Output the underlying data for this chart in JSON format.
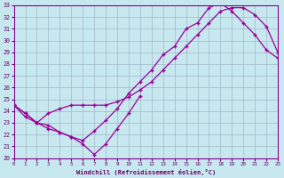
{
  "xlabel": "Windchill (Refroidissement éolien,°C)",
  "xlim": [
    0,
    23
  ],
  "ylim": [
    20,
    33
  ],
  "xticks": [
    0,
    1,
    2,
    3,
    4,
    5,
    6,
    7,
    8,
    9,
    10,
    11,
    12,
    13,
    14,
    15,
    16,
    17,
    18,
    19,
    20,
    21,
    22,
    23
  ],
  "yticks": [
    20,
    21,
    22,
    23,
    24,
    25,
    26,
    27,
    28,
    29,
    30,
    31,
    32,
    33
  ],
  "bg_color": "#c8e8f0",
  "grid_color": "#a0b8c8",
  "line_color": "#990099",
  "line1_x": [
    0,
    1,
    2,
    3,
    4,
    5,
    6,
    7,
    8,
    9,
    10,
    11,
    12,
    13,
    14,
    15,
    16,
    17,
    18,
    19,
    20,
    21,
    22,
    23
  ],
  "line1_y": [
    24.5,
    23.8,
    23.0,
    23.8,
    24.2,
    24.5,
    24.5,
    24.5,
    24.5,
    24.8,
    25.2,
    25.8,
    26.5,
    27.5,
    28.5,
    29.5,
    30.5,
    31.5,
    32.5,
    32.8,
    32.8,
    32.2,
    31.2,
    29.0
  ],
  "line2_x": [
    0,
    1,
    2,
    3,
    4,
    5,
    6,
    7,
    8,
    9,
    10,
    11,
    12,
    13,
    14,
    15,
    16,
    17,
    18,
    19,
    20,
    21,
    22,
    23
  ],
  "line2_y": [
    24.5,
    23.8,
    23.0,
    22.5,
    22.2,
    21.8,
    21.5,
    22.3,
    23.2,
    24.2,
    25.5,
    26.5,
    27.5,
    28.8,
    29.5,
    31.0,
    31.5,
    32.8,
    33.2,
    32.5,
    31.5,
    30.5,
    29.2,
    28.5
  ],
  "line3_x": [
    0,
    1,
    2,
    3,
    4,
    5,
    6,
    7,
    8,
    9,
    10,
    11
  ],
  "line3_y": [
    24.5,
    23.5,
    23.0,
    22.8,
    22.2,
    21.8,
    21.2,
    20.3,
    21.2,
    22.5,
    23.8,
    25.3
  ]
}
